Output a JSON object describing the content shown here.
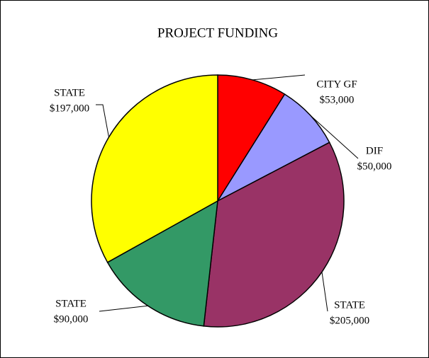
{
  "chart_data": {
    "type": "pie",
    "title": "PROJECT FUNDING",
    "categories": [
      "CITY GF",
      "DIF",
      "STATE",
      "STATE",
      "STATE"
    ],
    "values": [
      53000,
      50000,
      205000,
      90000,
      197000
    ],
    "value_labels": [
      "$53,000",
      "$50,000",
      "$205,000",
      "$90,000",
      "$197,000"
    ],
    "colors": [
      "#ff0000",
      "#9999ff",
      "#993366",
      "#339966",
      "#ffff00"
    ]
  }
}
